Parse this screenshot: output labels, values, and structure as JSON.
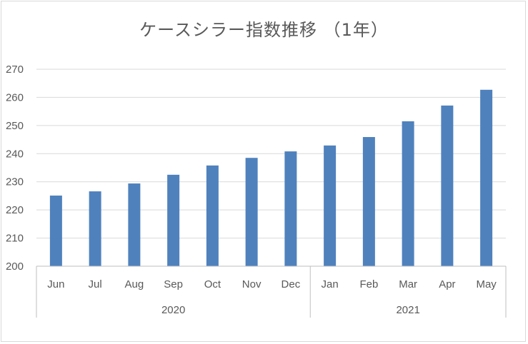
{
  "chart_data": {
    "type": "bar",
    "title": "ケースシラー指数推移 （1年）",
    "categories": [
      "Jun",
      "Jul",
      "Aug",
      "Sep",
      "Oct",
      "Nov",
      "Dec",
      "Jan",
      "Feb",
      "Mar",
      "Apr",
      "May"
    ],
    "groups": [
      {
        "label": "2020",
        "months": [
          "Jun",
          "Jul",
          "Aug",
          "Sep",
          "Oct",
          "Nov",
          "Dec"
        ]
      },
      {
        "label": "2021",
        "months": [
          "Jan",
          "Feb",
          "Mar",
          "Apr",
          "May"
        ]
      }
    ],
    "values": [
      225.1,
      226.6,
      229.4,
      232.5,
      235.8,
      238.5,
      240.8,
      242.9,
      245.9,
      251.5,
      257.1,
      262.7
    ],
    "ylim": [
      200,
      270
    ],
    "yticks": [
      200,
      210,
      220,
      230,
      240,
      250,
      260,
      270
    ],
    "bar_color": "#4f81bd",
    "grid": true,
    "legend": "none"
  }
}
